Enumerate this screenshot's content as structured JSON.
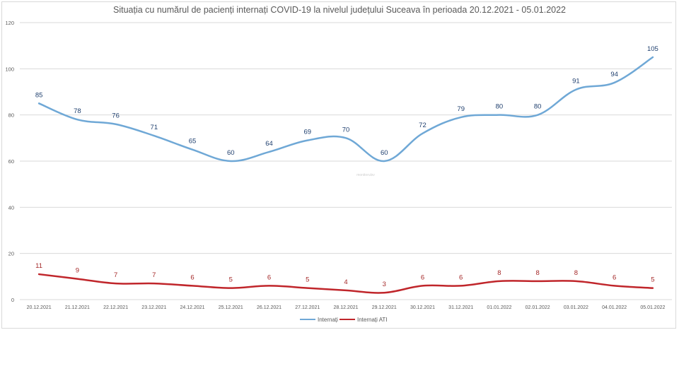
{
  "chart_data": {
    "type": "line",
    "title": "Situația cu numărul de pacienți internați COVID-19 la nivelul județului Suceava în perioada 20.12.2021 - 05.01.2022",
    "watermark": "monitorulsv",
    "categories": [
      "20.12.2021",
      "21.12.2021",
      "22.12.2021",
      "23.12.2021",
      "24.12.2021",
      "25.12.2021",
      "26.12.2021",
      "27.12.2021",
      "28.12.2021",
      "29.12.2021",
      "30.12.2021",
      "31.12.2021",
      "01.01.2022",
      "02.01.2022",
      "03.01.2022",
      "04.01.2022",
      "05.01.2022"
    ],
    "series": [
      {
        "name": "Internați",
        "color": "#6fa8d6",
        "label_color": "#1f3f6e",
        "values": [
          85,
          78,
          76,
          71,
          65,
          60,
          64,
          69,
          70,
          60,
          72,
          79,
          80,
          80,
          91,
          94,
          105
        ]
      },
      {
        "name": "Internați ATI",
        "color": "#c0262b",
        "label_color": "#a52a2a",
        "values": [
          11,
          9,
          7,
          7,
          6,
          5,
          6,
          5,
          4,
          3,
          6,
          6,
          8,
          8,
          8,
          6,
          5
        ]
      }
    ],
    "ylim": [
      0,
      120
    ],
    "yticks": [
      "0",
      "20",
      "40",
      "60",
      "80",
      "100",
      "120"
    ],
    "grid": true,
    "legend": "bottom"
  }
}
